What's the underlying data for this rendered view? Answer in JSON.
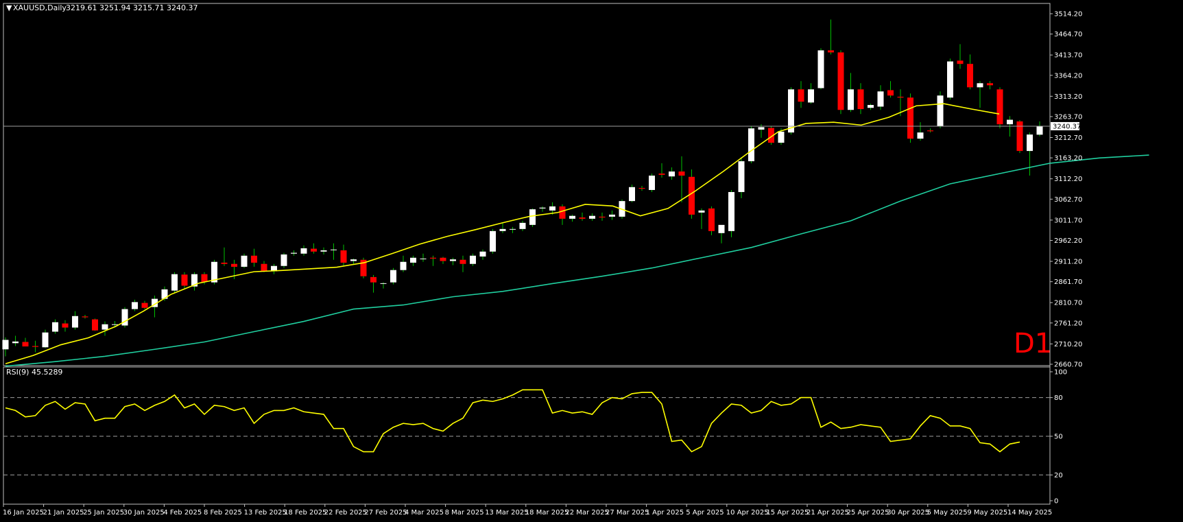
{
  "header": {
    "triangle": "▼",
    "symbol": "XAUUSD,Daily",
    "ohlc": "3219.61 3251.94 3215.71 3240.37"
  },
  "watermark": "D1",
  "price_axis": {
    "ticks": [
      "3514.20",
      "3464.70",
      "3413.70",
      "3364.20",
      "3313.20",
      "3263.70",
      "3212.70",
      "3163.20",
      "3112.20",
      "3062.70",
      "3011.70",
      "2962.20",
      "2911.20",
      "2861.70",
      "2810.70",
      "2761.20",
      "2710.20",
      "2660.70"
    ],
    "current_label": "3240.37",
    "current_value": 3240.37
  },
  "rsi": {
    "title": "RSI(9) 45.5289",
    "levels": [
      "100",
      "80",
      "50",
      "20",
      "0"
    ]
  },
  "time_axis": [
    "16 Jan 2025",
    "21 Jan 2025",
    "25 Jan 2025",
    "30 Jan 2025",
    "4 Feb 2025",
    "8 Feb 2025",
    "13 Feb 2025",
    "18 Feb 2025",
    "22 Feb 2025",
    "27 Feb 2025",
    "4 Mar 2025",
    "8 Mar 2025",
    "13 Mar 2025",
    "18 Mar 2025",
    "22 Mar 2025",
    "27 Mar 2025",
    "1 Apr 2025",
    "5 Apr 2025",
    "10 Apr 2025",
    "15 Apr 2025",
    "21 Apr 2025",
    "25 Apr 2025",
    "30 Apr 2025",
    "5 May 2025",
    "9 May 2025",
    "14 May 2025"
  ],
  "colors": {
    "bull": "#ffffff",
    "bear": "#ff0000",
    "wick": "#00c000",
    "ma_fast": "#ffff00",
    "ma_slow": "#20d0a0",
    "rsi": "#ffff00",
    "grid_text": "#ffffff",
    "watermark": "#ff0000"
  },
  "chart_data": [
    {
      "type": "candlestick",
      "title": "XAUUSD,Daily",
      "ylim": [
        2660.7,
        3535
      ],
      "candles": [
        {
          "o": 2697,
          "h": 2726,
          "l": 2680,
          "c": 2720
        },
        {
          "o": 2712,
          "h": 2730,
          "l": 2705,
          "c": 2716
        },
        {
          "o": 2715,
          "h": 2725,
          "l": 2705,
          "c": 2704
        },
        {
          "o": 2705,
          "h": 2718,
          "l": 2690,
          "c": 2703
        },
        {
          "o": 2702,
          "h": 2745,
          "l": 2700,
          "c": 2738
        },
        {
          "o": 2740,
          "h": 2770,
          "l": 2735,
          "c": 2763
        },
        {
          "o": 2760,
          "h": 2768,
          "l": 2740,
          "c": 2750
        },
        {
          "o": 2750,
          "h": 2790,
          "l": 2745,
          "c": 2778
        },
        {
          "o": 2777,
          "h": 2781,
          "l": 2772,
          "c": 2775
        },
        {
          "o": 2770,
          "h": 2772,
          "l": 2742,
          "c": 2743
        },
        {
          "o": 2745,
          "h": 2765,
          "l": 2730,
          "c": 2758
        },
        {
          "o": 2757,
          "h": 2766,
          "l": 2750,
          "c": 2758
        },
        {
          "o": 2755,
          "h": 2800,
          "l": 2750,
          "c": 2795
        },
        {
          "o": 2795,
          "h": 2818,
          "l": 2790,
          "c": 2812
        },
        {
          "o": 2810,
          "h": 2815,
          "l": 2795,
          "c": 2798
        },
        {
          "o": 2800,
          "h": 2828,
          "l": 2775,
          "c": 2820
        },
        {
          "o": 2820,
          "h": 2850,
          "l": 2815,
          "c": 2843
        },
        {
          "o": 2840,
          "h": 2885,
          "l": 2835,
          "c": 2880
        },
        {
          "o": 2879,
          "h": 2885,
          "l": 2845,
          "c": 2852
        },
        {
          "o": 2850,
          "h": 2885,
          "l": 2840,
          "c": 2880
        },
        {
          "o": 2880,
          "h": 2885,
          "l": 2855,
          "c": 2861
        },
        {
          "o": 2860,
          "h": 2915,
          "l": 2855,
          "c": 2910
        },
        {
          "o": 2908,
          "h": 2945,
          "l": 2900,
          "c": 2905
        },
        {
          "o": 2905,
          "h": 2915,
          "l": 2868,
          "c": 2898
        },
        {
          "o": 2898,
          "h": 2930,
          "l": 2895,
          "c": 2925
        },
        {
          "o": 2925,
          "h": 2942,
          "l": 2898,
          "c": 2908
        },
        {
          "o": 2905,
          "h": 2912,
          "l": 2885,
          "c": 2888
        },
        {
          "o": 2887,
          "h": 2905,
          "l": 2880,
          "c": 2900
        },
        {
          "o": 2900,
          "h": 2932,
          "l": 2895,
          "c": 2928
        },
        {
          "o": 2930,
          "h": 2938,
          "l": 2925,
          "c": 2932
        },
        {
          "o": 2930,
          "h": 2950,
          "l": 2925,
          "c": 2943
        },
        {
          "o": 2942,
          "h": 2955,
          "l": 2930,
          "c": 2935
        },
        {
          "o": 2935,
          "h": 2945,
          "l": 2928,
          "c": 2938
        },
        {
          "o": 2940,
          "h": 2955,
          "l": 2915,
          "c": 2940
        },
        {
          "o": 2938,
          "h": 2952,
          "l": 2900,
          "c": 2908
        },
        {
          "o": 2912,
          "h": 2918,
          "l": 2905,
          "c": 2916
        },
        {
          "o": 2915,
          "h": 2920,
          "l": 2870,
          "c": 2875
        },
        {
          "o": 2873,
          "h": 2878,
          "l": 2835,
          "c": 2860
        },
        {
          "o": 2858,
          "h": 2860,
          "l": 2845,
          "c": 2858
        },
        {
          "o": 2860,
          "h": 2895,
          "l": 2855,
          "c": 2890
        },
        {
          "o": 2890,
          "h": 2925,
          "l": 2885,
          "c": 2910
        },
        {
          "o": 2908,
          "h": 2925,
          "l": 2900,
          "c": 2920
        },
        {
          "o": 2918,
          "h": 2930,
          "l": 2910,
          "c": 2918
        },
        {
          "o": 2920,
          "h": 2925,
          "l": 2900,
          "c": 2918
        },
        {
          "o": 2920,
          "h": 2922,
          "l": 2905,
          "c": 2912
        },
        {
          "o": 2912,
          "h": 2920,
          "l": 2902,
          "c": 2916
        },
        {
          "o": 2915,
          "h": 2925,
          "l": 2885,
          "c": 2905
        },
        {
          "o": 2905,
          "h": 2930,
          "l": 2900,
          "c": 2925
        },
        {
          "o": 2923,
          "h": 2940,
          "l": 2915,
          "c": 2935
        },
        {
          "o": 2935,
          "h": 2990,
          "l": 2930,
          "c": 2985
        },
        {
          "o": 2985,
          "h": 3005,
          "l": 2980,
          "c": 2990
        },
        {
          "o": 2990,
          "h": 2995,
          "l": 2980,
          "c": 2990
        },
        {
          "o": 2990,
          "h": 3010,
          "l": 2985,
          "c": 3005
        },
        {
          "o": 3000,
          "h": 3040,
          "l": 2995,
          "c": 3038
        },
        {
          "o": 3040,
          "h": 3045,
          "l": 3032,
          "c": 3042
        },
        {
          "o": 3035,
          "h": 3055,
          "l": 3025,
          "c": 3045
        },
        {
          "o": 3045,
          "h": 3050,
          "l": 3000,
          "c": 3015
        },
        {
          "o": 3015,
          "h": 3025,
          "l": 3008,
          "c": 3022
        },
        {
          "o": 3018,
          "h": 3030,
          "l": 3010,
          "c": 3015
        },
        {
          "o": 3015,
          "h": 3028,
          "l": 3010,
          "c": 3022
        },
        {
          "o": 3020,
          "h": 3030,
          "l": 3010,
          "c": 3018
        },
        {
          "o": 3020,
          "h": 3035,
          "l": 3012,
          "c": 3025
        },
        {
          "o": 3020,
          "h": 3062,
          "l": 3015,
          "c": 3058
        },
        {
          "o": 3058,
          "h": 3098,
          "l": 3055,
          "c": 3092
        },
        {
          "o": 3090,
          "h": 3095,
          "l": 3083,
          "c": 3088
        },
        {
          "o": 3085,
          "h": 3125,
          "l": 3080,
          "c": 3120
        },
        {
          "o": 3125,
          "h": 3150,
          "l": 3115,
          "c": 3122
        },
        {
          "o": 3118,
          "h": 3140,
          "l": 3110,
          "c": 3130
        },
        {
          "o": 3130,
          "h": 3167,
          "l": 3055,
          "c": 3120
        },
        {
          "o": 3117,
          "h": 3135,
          "l": 3015,
          "c": 3025
        },
        {
          "o": 3030,
          "h": 3040,
          "l": 2990,
          "c": 3035
        },
        {
          "o": 3040,
          "h": 3045,
          "l": 2975,
          "c": 2985
        },
        {
          "o": 2980,
          "h": 2995,
          "l": 2955,
          "c": 3000
        },
        {
          "o": 2985,
          "h": 3085,
          "l": 2970,
          "c": 3080
        },
        {
          "o": 3080,
          "h": 3165,
          "l": 3065,
          "c": 3155
        },
        {
          "o": 3155,
          "h": 3240,
          "l": 3150,
          "c": 3235
        },
        {
          "o": 3232,
          "h": 3245,
          "l": 3212,
          "c": 3238
        },
        {
          "o": 3236,
          "h": 3240,
          "l": 3195,
          "c": 3200
        },
        {
          "o": 3200,
          "h": 3235,
          "l": 3195,
          "c": 3227
        },
        {
          "o": 3225,
          "h": 3335,
          "l": 3220,
          "c": 3330
        },
        {
          "o": 3330,
          "h": 3350,
          "l": 3285,
          "c": 3300
        },
        {
          "o": 3298,
          "h": 3345,
          "l": 3295,
          "c": 3330
        },
        {
          "o": 3333,
          "h": 3430,
          "l": 3330,
          "c": 3425
        },
        {
          "o": 3425,
          "h": 3500,
          "l": 3415,
          "c": 3420
        },
        {
          "o": 3420,
          "h": 3425,
          "l": 3270,
          "c": 3280
        },
        {
          "o": 3280,
          "h": 3370,
          "l": 3275,
          "c": 3330
        },
        {
          "o": 3330,
          "h": 3345,
          "l": 3270,
          "c": 3282
        },
        {
          "o": 3285,
          "h": 3295,
          "l": 3280,
          "c": 3292
        },
        {
          "o": 3288,
          "h": 3340,
          "l": 3280,
          "c": 3325
        },
        {
          "o": 3328,
          "h": 3350,
          "l": 3310,
          "c": 3315
        },
        {
          "o": 3312,
          "h": 3330,
          "l": 3265,
          "c": 3310
        },
        {
          "o": 3310,
          "h": 3320,
          "l": 3200,
          "c": 3210
        },
        {
          "o": 3210,
          "h": 3250,
          "l": 3205,
          "c": 3225
        },
        {
          "o": 3230,
          "h": 3235,
          "l": 3225,
          "c": 3228
        },
        {
          "o": 3240,
          "h": 3325,
          "l": 3235,
          "c": 3315
        },
        {
          "o": 3310,
          "h": 3405,
          "l": 3305,
          "c": 3398
        },
        {
          "o": 3400,
          "h": 3440,
          "l": 3380,
          "c": 3392
        },
        {
          "o": 3392,
          "h": 3415,
          "l": 3330,
          "c": 3335
        },
        {
          "o": 3335,
          "h": 3350,
          "l": 3285,
          "c": 3345
        },
        {
          "o": 3345,
          "h": 3350,
          "l": 3330,
          "c": 3340
        },
        {
          "o": 3330,
          "h": 3335,
          "l": 3235,
          "c": 3245
        },
        {
          "o": 3245,
          "h": 3265,
          "l": 3215,
          "c": 3256
        },
        {
          "o": 3252,
          "h": 3255,
          "l": 3175,
          "c": 3180
        },
        {
          "o": 3180,
          "h": 3225,
          "l": 3120,
          "c": 3220
        },
        {
          "o": 3219.61,
          "h": 3251.94,
          "l": 3215.71,
          "c": 3240.37
        }
      ],
      "ma_fast": [
        [
          0,
          2662
        ],
        [
          5,
          2682
        ],
        [
          10,
          2708
        ],
        [
          15,
          2725
        ],
        [
          20,
          2753
        ],
        [
          25,
          2790
        ],
        [
          30,
          2831
        ],
        [
          35,
          2858
        ],
        [
          40,
          2872
        ],
        [
          45,
          2886
        ],
        [
          50,
          2889
        ],
        [
          55,
          2893
        ],
        [
          60,
          2897
        ],
        [
          65,
          2908
        ],
        [
          70,
          2930
        ],
        [
          75,
          2953
        ],
        [
          80,
          2972
        ],
        [
          85,
          2988
        ],
        [
          90,
          3005
        ],
        [
          95,
          3021
        ],
        [
          100,
          3030
        ],
        [
          105,
          3050
        ],
        [
          110,
          3046
        ],
        [
          115,
          3022
        ],
        [
          120,
          3040
        ],
        [
          125,
          3083
        ],
        [
          130,
          3130
        ],
        [
          135,
          3180
        ],
        [
          140,
          3227
        ],
        [
          145,
          3247
        ],
        [
          150,
          3250
        ],
        [
          155,
          3243
        ],
        [
          160,
          3262
        ],
        [
          165,
          3290
        ],
        [
          170,
          3295
        ],
        [
          175,
          3282
        ],
        [
          180,
          3270
        ]
      ],
      "ma_slow": [
        [
          0,
          2656
        ],
        [
          10,
          2667
        ],
        [
          20,
          2680
        ],
        [
          30,
          2697
        ],
        [
          40,
          2715
        ],
        [
          50,
          2740
        ],
        [
          60,
          2765
        ],
        [
          70,
          2795
        ],
        [
          80,
          2805
        ],
        [
          90,
          2825
        ],
        [
          100,
          2838
        ],
        [
          110,
          2857
        ],
        [
          120,
          2875
        ],
        [
          130,
          2895
        ],
        [
          140,
          2920
        ],
        [
          150,
          2945
        ],
        [
          160,
          2978
        ],
        [
          170,
          3010
        ],
        [
          180,
          3058
        ],
        [
          190,
          3100
        ],
        [
          200,
          3125
        ],
        [
          210,
          3150
        ],
        [
          220,
          3163
        ],
        [
          230,
          3170
        ]
      ]
    },
    {
      "type": "line",
      "title": "RSI(9) 45.5289",
      "ylim": [
        0,
        100
      ],
      "levels": [
        20,
        50,
        80
      ],
      "values": [
        72,
        70,
        65,
        66,
        74,
        77,
        71,
        76,
        75,
        62,
        64,
        64,
        73,
        75,
        70,
        74,
        77,
        82,
        72,
        75,
        67,
        74,
        73,
        70,
        72,
        60,
        67,
        70,
        70,
        72,
        69,
        68,
        67,
        56,
        56,
        42,
        38,
        38,
        52,
        57,
        60,
        59,
        60,
        56,
        54,
        60,
        64,
        76,
        78,
        77,
        79,
        82,
        86,
        86,
        86,
        68,
        70,
        68,
        69,
        67,
        76,
        80,
        79,
        83,
        84,
        84,
        75,
        46,
        47,
        38,
        42,
        60,
        68,
        75,
        74,
        68,
        70,
        77,
        74,
        75,
        80,
        80,
        57,
        61,
        56,
        57,
        59,
        58,
        57,
        46,
        47,
        48,
        58,
        66,
        64,
        58,
        58,
        56,
        45,
        44,
        38,
        44,
        45.53
      ]
    }
  ]
}
